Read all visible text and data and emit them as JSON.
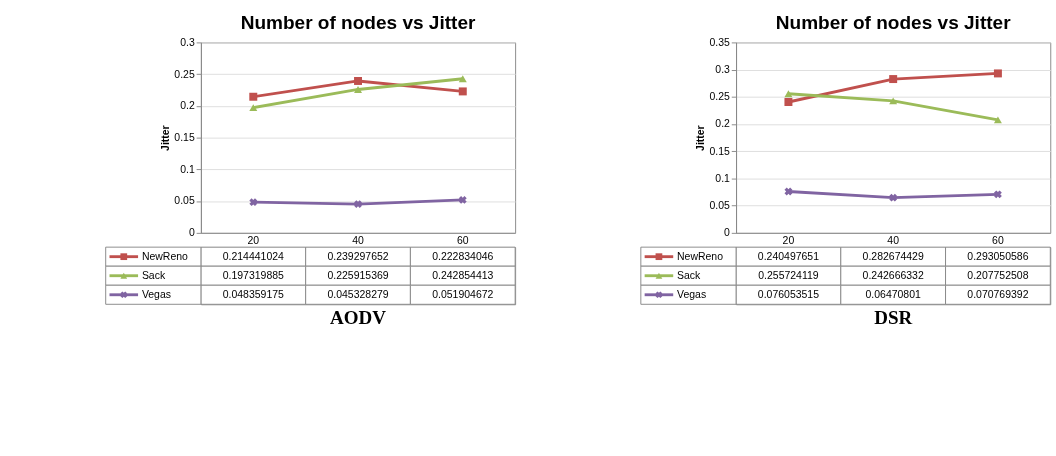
{
  "chart_data": [
    {
      "type": "line",
      "title": "Number of nodes vs Jitter",
      "ylabel": "Jitter",
      "categories": [
        "20",
        "40",
        "60"
      ],
      "ylim": [
        0,
        0.3
      ],
      "yticks": [
        0,
        0.05,
        0.1,
        0.15,
        0.2,
        0.25,
        0.3
      ],
      "grid": "y",
      "legend": "bottom",
      "data_labels": true,
      "annotations": [
        "AODV"
      ],
      "series": [
        {
          "name": "NewReno",
          "color": "#c0504d",
          "marker": "square",
          "values": [
            0.214441024,
            0.239297652,
            0.222834046
          ]
        },
        {
          "name": "Sack",
          "color": "#9bbb59",
          "marker": "triangle",
          "values": [
            0.197319885,
            0.225915369,
            0.242854413
          ]
        },
        {
          "name": "Vegas",
          "color": "#8064a2",
          "marker": "cross",
          "values": [
            0.048359175,
            0.045328279,
            0.051904672
          ]
        }
      ]
    },
    {
      "type": "line",
      "title": "Number of nodes vs Jitter",
      "ylabel": "Jitter",
      "categories": [
        "20",
        "40",
        "60"
      ],
      "ylim": [
        0,
        0.35
      ],
      "yticks": [
        0,
        0.05,
        0.1,
        0.15,
        0.2,
        0.25,
        0.3,
        0.35
      ],
      "grid": "y",
      "legend": "bottom",
      "data_labels": true,
      "annotations": [
        "DSR"
      ],
      "series": [
        {
          "name": "NewReno",
          "color": "#c0504d",
          "marker": "square",
          "values": [
            0.240497651,
            0.282674429,
            0.293050586
          ]
        },
        {
          "name": "Sack",
          "color": "#9bbb59",
          "marker": "triangle",
          "values": [
            0.255724119,
            0.242666332,
            0.207752508
          ]
        },
        {
          "name": "Vegas",
          "color": "#8064a2",
          "marker": "cross",
          "values": [
            0.076053515,
            0.06470801,
            0.070769392
          ]
        }
      ]
    }
  ]
}
